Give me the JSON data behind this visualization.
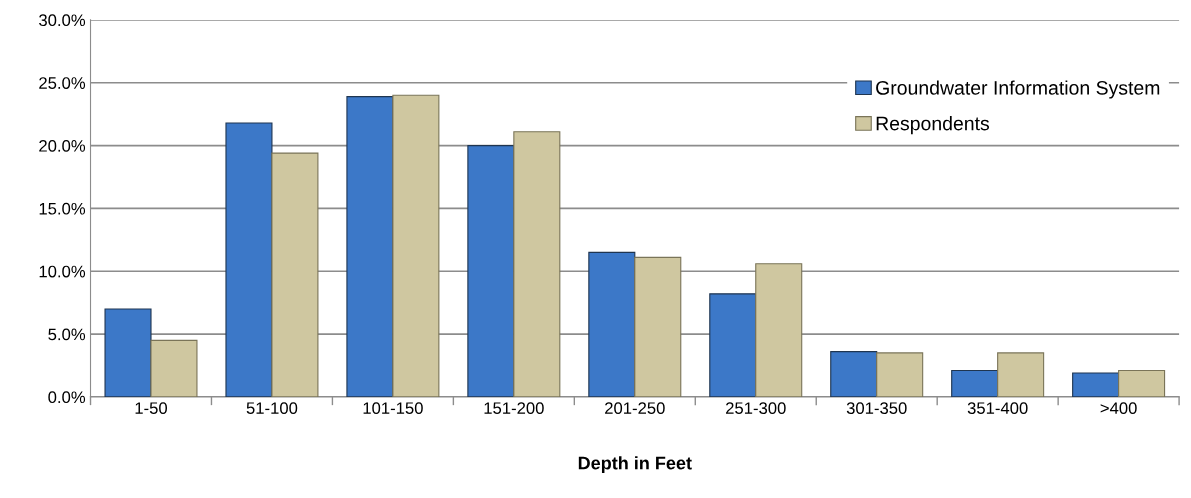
{
  "chart_data": {
    "type": "bar",
    "xlabel": "Depth in Feet",
    "categories": [
      "1-50",
      "51-100",
      "101-150",
      "151-200",
      "201-250",
      "251-300",
      "301-350",
      "351-400",
      ">400"
    ],
    "series": [
      {
        "name": "Groundwater Information System",
        "color": "#3c78c8",
        "values": [
          7.0,
          21.8,
          23.9,
          20.0,
          11.5,
          8.2,
          3.6,
          2.1,
          1.9
        ]
      },
      {
        "name": "Respondents",
        "color": "#cfc7a0",
        "values": [
          4.5,
          19.4,
          24.0,
          21.1,
          11.1,
          10.6,
          3.5,
          3.5,
          2.1
        ]
      }
    ],
    "ylim": [
      0,
      30
    ],
    "yticks": [
      {
        "value": 0,
        "label": "0.0%"
      },
      {
        "value": 5,
        "label": "5.0%"
      },
      {
        "value": 10,
        "label": "10.0%"
      },
      {
        "value": 15,
        "label": "15.0%"
      },
      {
        "value": 20,
        "label": "20.0%"
      },
      {
        "value": 25,
        "label": "25.0%"
      },
      {
        "value": 30,
        "label": "30.0%"
      }
    ],
    "grid": "y",
    "legend": "top right"
  }
}
